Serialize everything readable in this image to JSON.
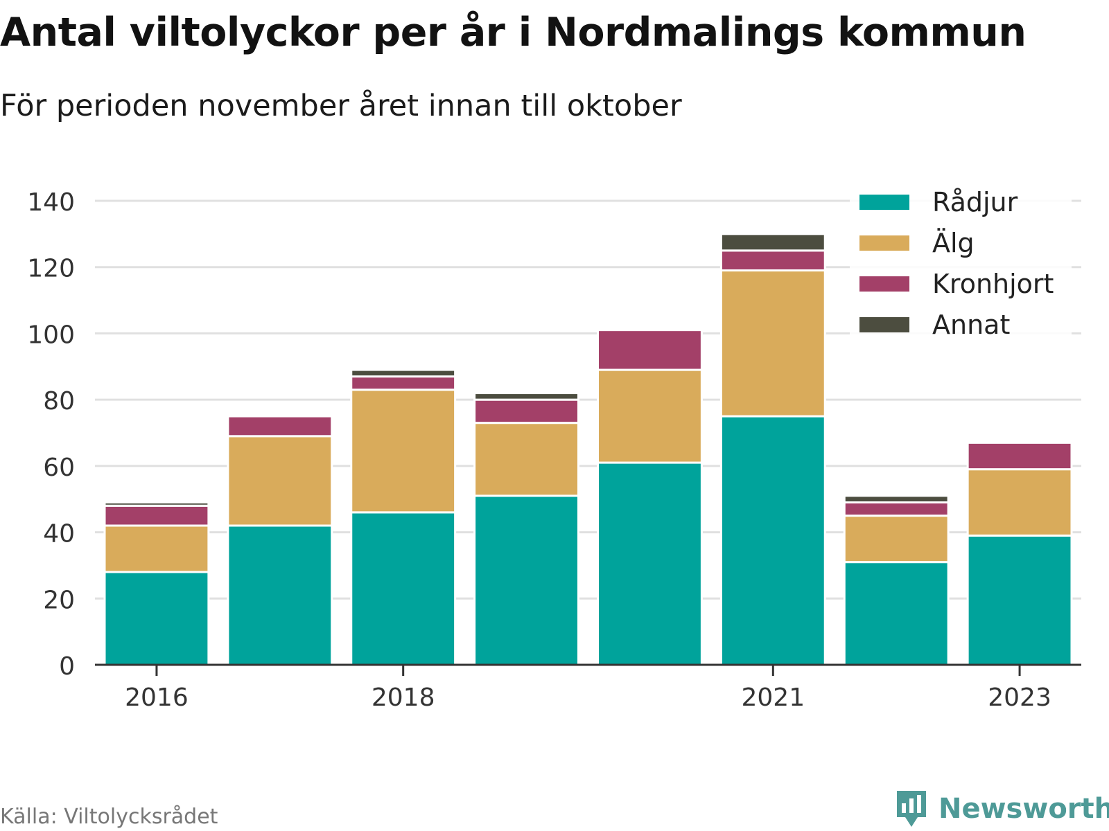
{
  "header": {
    "title": "Antal viltolyckor per år i Nordmalings kommun",
    "subtitle": "För perioden november året innan till oktober"
  },
  "footer": {
    "source": "Källa: Viltolycksrådet",
    "brand": "Newsworthy",
    "brand_icon": "bar-chart-speech-bubble-icon"
  },
  "colors": {
    "Rådjur": "#00a39b",
    "Älg": "#d9ab5b",
    "Kronhjort": "#a34068",
    "Annat": "#4c4d3f",
    "grid": "#e0e0e0",
    "axis": "#333333",
    "brand": "#4e9a97"
  },
  "chart_data": {
    "type": "bar",
    "stacked": true,
    "title": "Antal viltolyckor per år i Nordmalings kommun",
    "subtitle": "För perioden november året innan till oktober",
    "xlabel": "",
    "ylabel": "",
    "categories": [
      "2016",
      "2017",
      "2018",
      "2019",
      "2020",
      "2021",
      "2022",
      "2023"
    ],
    "x_tick_labels": [
      "2016",
      "2018",
      "2021",
      "2023"
    ],
    "y_ticks": [
      0,
      20,
      40,
      60,
      80,
      100,
      120,
      140
    ],
    "ylim": [
      0,
      140
    ],
    "grid": true,
    "legend_position": "top-right",
    "series": [
      {
        "name": "Rådjur",
        "values": [
          28,
          42,
          46,
          51,
          61,
          75,
          31,
          39
        ]
      },
      {
        "name": "Älg",
        "values": [
          14,
          27,
          37,
          22,
          28,
          44,
          14,
          20
        ]
      },
      {
        "name": "Kronhjort",
        "values": [
          6,
          6,
          4,
          7,
          12,
          6,
          4,
          8
        ]
      },
      {
        "name": "Annat",
        "values": [
          1,
          0,
          2,
          2,
          0,
          5,
          2,
          0
        ]
      }
    ]
  }
}
